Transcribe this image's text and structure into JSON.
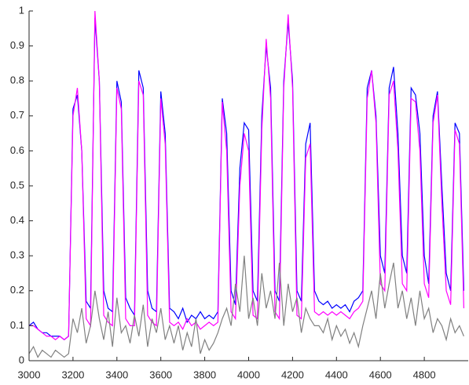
{
  "chart_data": {
    "type": "line",
    "x": [
      3000,
      3020,
      3040,
      3060,
      3080,
      3100,
      3120,
      3140,
      3160,
      3180,
      3200,
      3220,
      3240,
      3260,
      3280,
      3300,
      3320,
      3340,
      3360,
      3380,
      3400,
      3420,
      3440,
      3460,
      3480,
      3500,
      3520,
      3540,
      3560,
      3580,
      3600,
      3620,
      3640,
      3660,
      3680,
      3700,
      3720,
      3740,
      3760,
      3780,
      3800,
      3820,
      3840,
      3860,
      3880,
      3900,
      3920,
      3940,
      3960,
      3980,
      4000,
      4020,
      4040,
      4060,
      4080,
      4100,
      4120,
      4140,
      4160,
      4180,
      4200,
      4220,
      4240,
      4260,
      4280,
      4300,
      4320,
      4340,
      4360,
      4380,
      4400,
      4420,
      4440,
      4460,
      4480,
      4500,
      4520,
      4540,
      4560,
      4580,
      4600,
      4620,
      4640,
      4660,
      4680,
      4700,
      4720,
      4740,
      4760,
      4780,
      4800,
      4820,
      4840,
      4860,
      4880,
      4900,
      4920,
      4940,
      4960,
      4980
    ],
    "series": [
      {
        "color": "#0000ff",
        "values": [
          0.1,
          0.11,
          0.09,
          0.08,
          0.08,
          0.07,
          0.07,
          0.07,
          0.06,
          0.07,
          0.72,
          0.76,
          0.6,
          0.17,
          0.15,
          0.98,
          0.8,
          0.2,
          0.15,
          0.14,
          0.8,
          0.74,
          0.18,
          0.15,
          0.13,
          0.83,
          0.78,
          0.2,
          0.15,
          0.14,
          0.77,
          0.65,
          0.15,
          0.14,
          0.12,
          0.15,
          0.11,
          0.13,
          0.12,
          0.14,
          0.12,
          0.13,
          0.12,
          0.14,
          0.75,
          0.65,
          0.2,
          0.16,
          0.55,
          0.68,
          0.66,
          0.2,
          0.17,
          0.7,
          0.9,
          0.78,
          0.2,
          0.17,
          0.8,
          0.97,
          0.8,
          0.2,
          0.17,
          0.62,
          0.68,
          0.2,
          0.17,
          0.16,
          0.17,
          0.15,
          0.16,
          0.15,
          0.16,
          0.14,
          0.17,
          0.18,
          0.2,
          0.78,
          0.83,
          0.7,
          0.3,
          0.25,
          0.78,
          0.84,
          0.65,
          0.3,
          0.25,
          0.78,
          0.76,
          0.65,
          0.3,
          0.22,
          0.7,
          0.77,
          0.5,
          0.25,
          0.2,
          0.68,
          0.65,
          0.2
        ]
      },
      {
        "color": "#ff00ff",
        "values": [
          0.1,
          0.1,
          0.09,
          0.08,
          0.07,
          0.07,
          0.06,
          0.07,
          0.06,
          0.07,
          0.7,
          0.78,
          0.6,
          0.12,
          0.1,
          1.0,
          0.8,
          0.13,
          0.11,
          0.1,
          0.78,
          0.72,
          0.12,
          0.1,
          0.1,
          0.8,
          0.76,
          0.13,
          0.11,
          0.1,
          0.75,
          0.62,
          0.11,
          0.1,
          0.11,
          0.09,
          0.12,
          0.1,
          0.11,
          0.09,
          0.1,
          0.11,
          0.1,
          0.11,
          0.74,
          0.6,
          0.14,
          0.12,
          0.5,
          0.65,
          0.6,
          0.13,
          0.12,
          0.66,
          0.92,
          0.75,
          0.14,
          0.12,
          0.78,
          0.99,
          0.78,
          0.13,
          0.12,
          0.58,
          0.62,
          0.14,
          0.13,
          0.14,
          0.13,
          0.14,
          0.13,
          0.14,
          0.13,
          0.12,
          0.14,
          0.15,
          0.17,
          0.75,
          0.83,
          0.68,
          0.22,
          0.2,
          0.76,
          0.8,
          0.6,
          0.22,
          0.2,
          0.75,
          0.74,
          0.6,
          0.22,
          0.18,
          0.68,
          0.76,
          0.45,
          0.2,
          0.16,
          0.66,
          0.62,
          0.15
        ]
      },
      {
        "color": "#808080",
        "values": [
          0.02,
          0.04,
          0.01,
          0.03,
          0.02,
          0.01,
          0.03,
          0.02,
          0.01,
          0.02,
          0.12,
          0.08,
          0.15,
          0.05,
          0.1,
          0.2,
          0.12,
          0.06,
          0.14,
          0.04,
          0.18,
          0.08,
          0.1,
          0.05,
          0.13,
          0.07,
          0.16,
          0.04,
          0.12,
          0.08,
          0.15,
          0.06,
          0.1,
          0.05,
          0.1,
          0.03,
          0.08,
          0.04,
          0.12,
          0.02,
          0.06,
          0.03,
          0.05,
          0.08,
          0.12,
          0.15,
          0.1,
          0.22,
          0.14,
          0.3,
          0.12,
          0.18,
          0.1,
          0.25,
          0.15,
          0.2,
          0.12,
          0.28,
          0.1,
          0.22,
          0.14,
          0.18,
          0.08,
          0.15,
          0.12,
          0.1,
          0.1,
          0.08,
          0.12,
          0.06,
          0.1,
          0.07,
          0.09,
          0.05,
          0.08,
          0.04,
          0.1,
          0.15,
          0.2,
          0.12,
          0.25,
          0.15,
          0.22,
          0.28,
          0.15,
          0.2,
          0.12,
          0.18,
          0.1,
          0.2,
          0.12,
          0.15,
          0.08,
          0.12,
          0.1,
          0.06,
          0.12,
          0.08,
          0.1,
          0.07
        ]
      }
    ],
    "xlim": [
      3000,
      5000
    ],
    "ylim": [
      0,
      1
    ],
    "xticks": [
      3000,
      3200,
      3400,
      3600,
      3800,
      4000,
      4200,
      4400,
      4600,
      4800
    ],
    "yticks": [
      0,
      0.1,
      0.2,
      0.3,
      0.4,
      0.5,
      0.6,
      0.7,
      0.8,
      0.9,
      1
    ]
  }
}
